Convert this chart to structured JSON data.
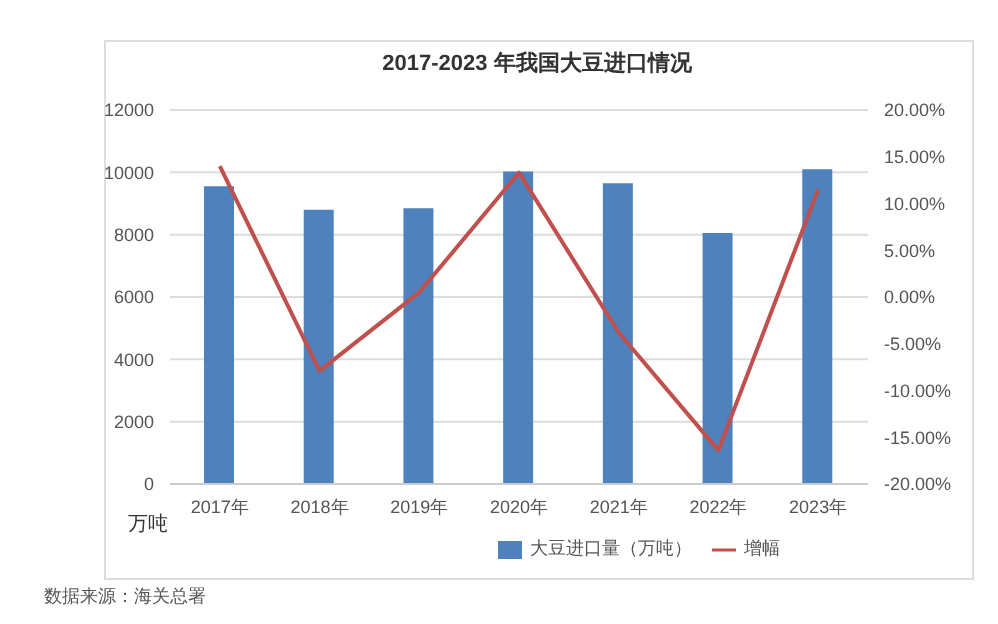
{
  "chart_data": {
    "type": "bar",
    "title": "2017-2023 年我国大豆进口情况",
    "categories": [
      "2017年",
      "2018年",
      "2019年",
      "2020年",
      "2021年",
      "2022年",
      "2023年"
    ],
    "series": [
      {
        "name": "大豆进口量（万吨）",
        "color": "#4f81bd",
        "values": [
          9550,
          8800,
          8850,
          10030,
          9650,
          8050,
          10100
        ]
      },
      {
        "name": "增幅",
        "type": "line",
        "axis": "y2",
        "color": "#c0504d",
        "values": [
          14,
          -7.9,
          0.5,
          13.3,
          -3.8,
          -16.4,
          11.5
        ]
      }
    ],
    "ylim": [
      0,
      12000
    ],
    "yticks": [
      0,
      2000,
      4000,
      6000,
      8000,
      10000,
      12000
    ],
    "y2lim": [
      -20,
      20
    ],
    "y2ticks": [
      {
        "value": -20,
        "label": "-20.00%"
      },
      {
        "value": -15,
        "label": "-15.00%"
      },
      {
        "value": -10,
        "label": "-10.00%"
      },
      {
        "value": -5,
        "label": "-5.00%"
      },
      {
        "value": 0,
        "label": "0.00%"
      },
      {
        "value": 5,
        "label": "5.00%"
      },
      {
        "value": 10,
        "label": "10.00%"
      },
      {
        "value": 15,
        "label": "15.00%"
      },
      {
        "value": 20,
        "label": "20.00%"
      }
    ],
    "grid": "y",
    "legend": "bottom",
    "marker": "none",
    "line_style": "solid",
    "annotations": [
      "万吨",
      "数据来源：海关总署"
    ]
  }
}
